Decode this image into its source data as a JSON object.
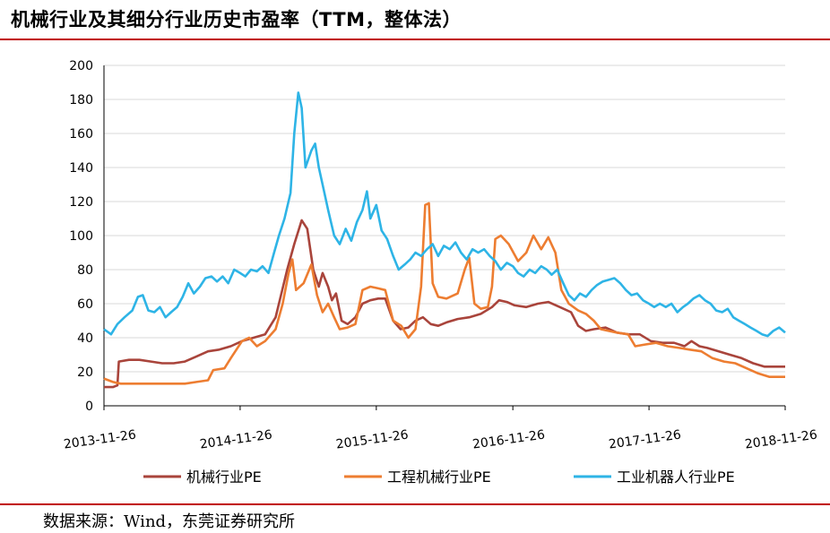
{
  "header": {
    "title": "机械行业及其细分行业历史市盈率（TTM，整体法）"
  },
  "footer": {
    "source": "数据来源：Wind，东莞证券研究所"
  },
  "chart_data": {
    "type": "line",
    "ylim": [
      0,
      200
    ],
    "yticks": [
      0,
      20,
      40,
      60,
      80,
      100,
      120,
      140,
      160,
      180,
      200
    ],
    "xlim": [
      "2013-11-26",
      "2018-11-26"
    ],
    "xticks": [
      "2013-11-26",
      "2014-11-26",
      "2015-11-26",
      "2016-11-26",
      "2017-11-26",
      "2018-11-26"
    ],
    "grid": "horizontal",
    "legend": "bottom",
    "series": [
      {
        "name": "机械行业PE",
        "color": "#a9443b",
        "points": [
          [
            "2013-11-26",
            11
          ],
          [
            "2013-12-20",
            11
          ],
          [
            "2014-01-01",
            12
          ],
          [
            "2014-01-05",
            26
          ],
          [
            "2014-02-01",
            27
          ],
          [
            "2014-03-01",
            27
          ],
          [
            "2014-04-01",
            26
          ],
          [
            "2014-05-01",
            25
          ],
          [
            "2014-06-01",
            25
          ],
          [
            "2014-07-01",
            26
          ],
          [
            "2014-08-01",
            29
          ],
          [
            "2014-09-01",
            32
          ],
          [
            "2014-10-01",
            33
          ],
          [
            "2014-11-01",
            35
          ],
          [
            "2014-12-01",
            38
          ],
          [
            "2015-01-01",
            40
          ],
          [
            "2015-02-01",
            42
          ],
          [
            "2015-03-01",
            52
          ],
          [
            "2015-04-01",
            80
          ],
          [
            "2015-04-20",
            95
          ],
          [
            "2015-05-10",
            109
          ],
          [
            "2015-05-25",
            104
          ],
          [
            "2015-06-10",
            80
          ],
          [
            "2015-06-25",
            70
          ],
          [
            "2015-07-05",
            78
          ],
          [
            "2015-07-20",
            70
          ],
          [
            "2015-07-30",
            62
          ],
          [
            "2015-08-10",
            66
          ],
          [
            "2015-08-25",
            50
          ],
          [
            "2015-09-10",
            48
          ],
          [
            "2015-10-01",
            52
          ],
          [
            "2015-10-20",
            60
          ],
          [
            "2015-11-10",
            62
          ],
          [
            "2015-12-01",
            63
          ],
          [
            "2015-12-20",
            63
          ],
          [
            "2016-01-10",
            50
          ],
          [
            "2016-01-30",
            45
          ],
          [
            "2016-02-20",
            46
          ],
          [
            "2016-03-10",
            50
          ],
          [
            "2016-03-30",
            52
          ],
          [
            "2016-04-20",
            48
          ],
          [
            "2016-05-10",
            47
          ],
          [
            "2016-06-01",
            49
          ],
          [
            "2016-07-01",
            51
          ],
          [
            "2016-08-01",
            52
          ],
          [
            "2016-09-01",
            54
          ],
          [
            "2016-10-01",
            58
          ],
          [
            "2016-10-20",
            62
          ],
          [
            "2016-11-10",
            61
          ],
          [
            "2016-12-01",
            59
          ],
          [
            "2017-01-01",
            58
          ],
          [
            "2017-02-01",
            60
          ],
          [
            "2017-03-01",
            61
          ],
          [
            "2017-04-01",
            58
          ],
          [
            "2017-05-01",
            55
          ],
          [
            "2017-05-20",
            47
          ],
          [
            "2017-06-10",
            44
          ],
          [
            "2017-07-01",
            45
          ],
          [
            "2017-08-01",
            46
          ],
          [
            "2017-09-01",
            43
          ],
          [
            "2017-10-01",
            42
          ],
          [
            "2017-11-01",
            42
          ],
          [
            "2017-12-01",
            38
          ],
          [
            "2018-01-01",
            37
          ],
          [
            "2018-02-01",
            37
          ],
          [
            "2018-03-01",
            35
          ],
          [
            "2018-03-20",
            38
          ],
          [
            "2018-04-10",
            35
          ],
          [
            "2018-05-01",
            34
          ],
          [
            "2018-06-01",
            32
          ],
          [
            "2018-07-01",
            30
          ],
          [
            "2018-08-01",
            28
          ],
          [
            "2018-09-01",
            25
          ],
          [
            "2018-10-01",
            23
          ],
          [
            "2018-11-26",
            23
          ]
        ]
      },
      {
        "name": "工程机械行业PE",
        "color": "#ed7d31",
        "points": [
          [
            "2013-11-26",
            16
          ],
          [
            "2013-12-20",
            14
          ],
          [
            "2014-01-10",
            13
          ],
          [
            "2014-03-01",
            13
          ],
          [
            "2014-05-01",
            13
          ],
          [
            "2014-07-01",
            13
          ],
          [
            "2014-08-01",
            14
          ],
          [
            "2014-09-01",
            15
          ],
          [
            "2014-09-15",
            21
          ],
          [
            "2014-10-15",
            22
          ],
          [
            "2014-11-01",
            28
          ],
          [
            "2014-12-01",
            38
          ],
          [
            "2014-12-20",
            40
          ],
          [
            "2015-01-10",
            35
          ],
          [
            "2015-02-01",
            38
          ],
          [
            "2015-03-01",
            45
          ],
          [
            "2015-03-20",
            60
          ],
          [
            "2015-04-05",
            78
          ],
          [
            "2015-04-15",
            86
          ],
          [
            "2015-04-25",
            68
          ],
          [
            "2015-05-15",
            72
          ],
          [
            "2015-06-05",
            83
          ],
          [
            "2015-06-20",
            65
          ],
          [
            "2015-07-05",
            55
          ],
          [
            "2015-07-20",
            60
          ],
          [
            "2015-08-05",
            52
          ],
          [
            "2015-08-20",
            45
          ],
          [
            "2015-09-10",
            46
          ],
          [
            "2015-10-01",
            48
          ],
          [
            "2015-10-20",
            68
          ],
          [
            "2015-11-10",
            70
          ],
          [
            "2015-12-01",
            69
          ],
          [
            "2015-12-20",
            68
          ],
          [
            "2016-01-10",
            50
          ],
          [
            "2016-02-01",
            47
          ],
          [
            "2016-02-20",
            40
          ],
          [
            "2016-03-10",
            45
          ],
          [
            "2016-03-25",
            70
          ],
          [
            "2016-04-05",
            118
          ],
          [
            "2016-04-15",
            119
          ],
          [
            "2016-04-25",
            72
          ],
          [
            "2016-05-10",
            64
          ],
          [
            "2016-06-01",
            63
          ],
          [
            "2016-07-01",
            66
          ],
          [
            "2016-07-20",
            80
          ],
          [
            "2016-08-01",
            87
          ],
          [
            "2016-08-15",
            60
          ],
          [
            "2016-09-01",
            57
          ],
          [
            "2016-09-20",
            58
          ],
          [
            "2016-10-01",
            70
          ],
          [
            "2016-10-10",
            98
          ],
          [
            "2016-10-25",
            100
          ],
          [
            "2016-11-15",
            95
          ],
          [
            "2016-12-10",
            85
          ],
          [
            "2017-01-01",
            90
          ],
          [
            "2017-01-20",
            100
          ],
          [
            "2017-02-10",
            92
          ],
          [
            "2017-03-01",
            99
          ],
          [
            "2017-03-20",
            90
          ],
          [
            "2017-04-05",
            68
          ],
          [
            "2017-04-25",
            60
          ],
          [
            "2017-05-20",
            56
          ],
          [
            "2017-06-10",
            54
          ],
          [
            "2017-07-01",
            50
          ],
          [
            "2017-07-20",
            45
          ],
          [
            "2017-08-10",
            44
          ],
          [
            "2017-09-01",
            43
          ],
          [
            "2017-10-01",
            42
          ],
          [
            "2017-10-20",
            35
          ],
          [
            "2017-11-15",
            36
          ],
          [
            "2017-12-15",
            37
          ],
          [
            "2018-01-15",
            35
          ],
          [
            "2018-02-15",
            34
          ],
          [
            "2018-03-15",
            33
          ],
          [
            "2018-04-15",
            32
          ],
          [
            "2018-05-15",
            28
          ],
          [
            "2018-06-15",
            26
          ],
          [
            "2018-07-15",
            25
          ],
          [
            "2018-08-15",
            22
          ],
          [
            "2018-09-15",
            19
          ],
          [
            "2018-10-15",
            17
          ],
          [
            "2018-11-26",
            17
          ]
        ]
      },
      {
        "name": "工业机器人行业PE",
        "color": "#2eb4e6",
        "points": [
          [
            "2013-11-26",
            45
          ],
          [
            "2013-12-15",
            42
          ],
          [
            "2014-01-01",
            48
          ],
          [
            "2014-01-20",
            52
          ],
          [
            "2014-02-10",
            56
          ],
          [
            "2014-02-25",
            64
          ],
          [
            "2014-03-10",
            65
          ],
          [
            "2014-03-25",
            56
          ],
          [
            "2014-04-10",
            55
          ],
          [
            "2014-04-25",
            58
          ],
          [
            "2014-05-10",
            52
          ],
          [
            "2014-05-25",
            55
          ],
          [
            "2014-06-10",
            58
          ],
          [
            "2014-06-25",
            64
          ],
          [
            "2014-07-10",
            72
          ],
          [
            "2014-07-25",
            66
          ],
          [
            "2014-08-10",
            70
          ],
          [
            "2014-08-25",
            75
          ],
          [
            "2014-09-10",
            76
          ],
          [
            "2014-09-25",
            73
          ],
          [
            "2014-10-10",
            76
          ],
          [
            "2014-10-25",
            72
          ],
          [
            "2014-11-10",
            80
          ],
          [
            "2014-11-26",
            78
          ],
          [
            "2014-12-10",
            76
          ],
          [
            "2014-12-25",
            80
          ],
          [
            "2015-01-10",
            79
          ],
          [
            "2015-01-25",
            82
          ],
          [
            "2015-02-10",
            78
          ],
          [
            "2015-02-25",
            90
          ],
          [
            "2015-03-10",
            100
          ],
          [
            "2015-03-25",
            110
          ],
          [
            "2015-04-10",
            125
          ],
          [
            "2015-04-20",
            160
          ],
          [
            "2015-05-01",
            184
          ],
          [
            "2015-05-10",
            175
          ],
          [
            "2015-05-20",
            140
          ],
          [
            "2015-06-05",
            150
          ],
          [
            "2015-06-15",
            154
          ],
          [
            "2015-06-25",
            140
          ],
          [
            "2015-07-05",
            130
          ],
          [
            "2015-07-20",
            115
          ],
          [
            "2015-08-05",
            100
          ],
          [
            "2015-08-20",
            95
          ],
          [
            "2015-09-05",
            104
          ],
          [
            "2015-09-20",
            97
          ],
          [
            "2015-10-05",
            108
          ],
          [
            "2015-10-20",
            115
          ],
          [
            "2015-11-01",
            126
          ],
          [
            "2015-11-10",
            110
          ],
          [
            "2015-11-26",
            118
          ],
          [
            "2015-12-10",
            103
          ],
          [
            "2015-12-25",
            98
          ],
          [
            "2016-01-10",
            88
          ],
          [
            "2016-01-25",
            80
          ],
          [
            "2016-02-10",
            83
          ],
          [
            "2016-02-25",
            86
          ],
          [
            "2016-03-10",
            90
          ],
          [
            "2016-03-25",
            88
          ],
          [
            "2016-04-10",
            92
          ],
          [
            "2016-04-25",
            95
          ],
          [
            "2016-05-10",
            88
          ],
          [
            "2016-05-25",
            94
          ],
          [
            "2016-06-10",
            92
          ],
          [
            "2016-06-25",
            96
          ],
          [
            "2016-07-10",
            90
          ],
          [
            "2016-07-25",
            86
          ],
          [
            "2016-08-10",
            92
          ],
          [
            "2016-08-25",
            90
          ],
          [
            "2016-09-10",
            92
          ],
          [
            "2016-09-25",
            88
          ],
          [
            "2016-10-10",
            85
          ],
          [
            "2016-10-25",
            80
          ],
          [
            "2016-11-10",
            84
          ],
          [
            "2016-11-26",
            82
          ],
          [
            "2016-12-10",
            78
          ],
          [
            "2016-12-25",
            76
          ],
          [
            "2017-01-10",
            80
          ],
          [
            "2017-01-25",
            78
          ],
          [
            "2017-02-10",
            82
          ],
          [
            "2017-02-25",
            80
          ],
          [
            "2017-03-10",
            77
          ],
          [
            "2017-03-25",
            80
          ],
          [
            "2017-04-10",
            72
          ],
          [
            "2017-04-25",
            65
          ],
          [
            "2017-05-10",
            62
          ],
          [
            "2017-05-25",
            66
          ],
          [
            "2017-06-10",
            64
          ],
          [
            "2017-06-25",
            68
          ],
          [
            "2017-07-10",
            71
          ],
          [
            "2017-07-25",
            73
          ],
          [
            "2017-08-10",
            74
          ],
          [
            "2017-08-25",
            75
          ],
          [
            "2017-09-10",
            72
          ],
          [
            "2017-09-25",
            68
          ],
          [
            "2017-10-10",
            65
          ],
          [
            "2017-10-25",
            66
          ],
          [
            "2017-11-10",
            62
          ],
          [
            "2017-11-26",
            60
          ],
          [
            "2017-12-10",
            58
          ],
          [
            "2017-12-25",
            60
          ],
          [
            "2018-01-10",
            58
          ],
          [
            "2018-01-25",
            60
          ],
          [
            "2018-02-10",
            55
          ],
          [
            "2018-02-25",
            58
          ],
          [
            "2018-03-10",
            60
          ],
          [
            "2018-03-25",
            63
          ],
          [
            "2018-04-10",
            65
          ],
          [
            "2018-04-25",
            62
          ],
          [
            "2018-05-10",
            60
          ],
          [
            "2018-05-25",
            56
          ],
          [
            "2018-06-10",
            55
          ],
          [
            "2018-06-25",
            57
          ],
          [
            "2018-07-10",
            52
          ],
          [
            "2018-07-25",
            50
          ],
          [
            "2018-08-10",
            48
          ],
          [
            "2018-08-25",
            46
          ],
          [
            "2018-09-10",
            44
          ],
          [
            "2018-09-25",
            42
          ],
          [
            "2018-10-10",
            41
          ],
          [
            "2018-10-25",
            44
          ],
          [
            "2018-11-10",
            46
          ],
          [
            "2018-11-26",
            43
          ]
        ]
      }
    ]
  }
}
